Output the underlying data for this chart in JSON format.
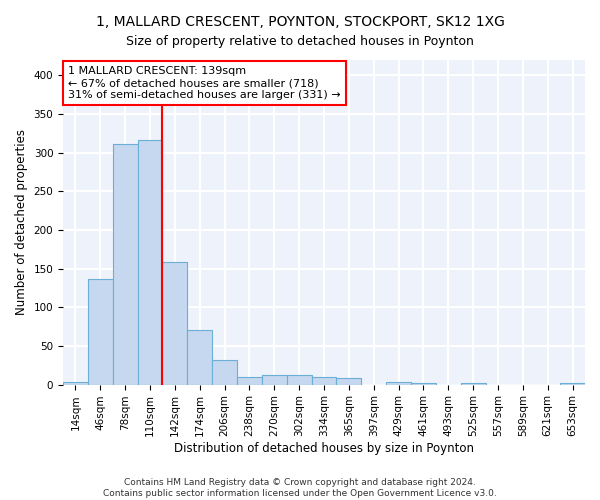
{
  "title1": "1, MALLARD CRESCENT, POYNTON, STOCKPORT, SK12 1XG",
  "title2": "Size of property relative to detached houses in Poynton",
  "xlabel": "Distribution of detached houses by size in Poynton",
  "ylabel": "Number of detached properties",
  "footnote": "Contains HM Land Registry data © Crown copyright and database right 2024.\nContains public sector information licensed under the Open Government Licence v3.0.",
  "bar_labels": [
    "14sqm",
    "46sqm",
    "78sqm",
    "110sqm",
    "142sqm",
    "174sqm",
    "206sqm",
    "238sqm",
    "270sqm",
    "302sqm",
    "334sqm",
    "365sqm",
    "397sqm",
    "429sqm",
    "461sqm",
    "493sqm",
    "525sqm",
    "557sqm",
    "589sqm",
    "621sqm",
    "653sqm"
  ],
  "bar_values": [
    4,
    137,
    311,
    317,
    158,
    70,
    32,
    10,
    13,
    13,
    10,
    8,
    0,
    4,
    2,
    0,
    2,
    0,
    0,
    0,
    2
  ],
  "bar_color": "#c5d8ef",
  "bar_edgecolor": "#6baed6",
  "vline_color": "red",
  "vline_bar_index": 4,
  "annotation_text": "1 MALLARD CRESCENT: 139sqm\n← 67% of detached houses are smaller (718)\n31% of semi-detached houses are larger (331) →",
  "ylim": [
    0,
    420
  ],
  "yticks": [
    0,
    50,
    100,
    150,
    200,
    250,
    300,
    350,
    400
  ],
  "bg_color": "#eef2fa",
  "grid_color": "#ffffff",
  "title1_fontsize": 10,
  "title2_fontsize": 9,
  "xlabel_fontsize": 8.5,
  "ylabel_fontsize": 8.5,
  "tick_fontsize": 7.5,
  "annotation_fontsize": 8,
  "footnote_fontsize": 6.5
}
